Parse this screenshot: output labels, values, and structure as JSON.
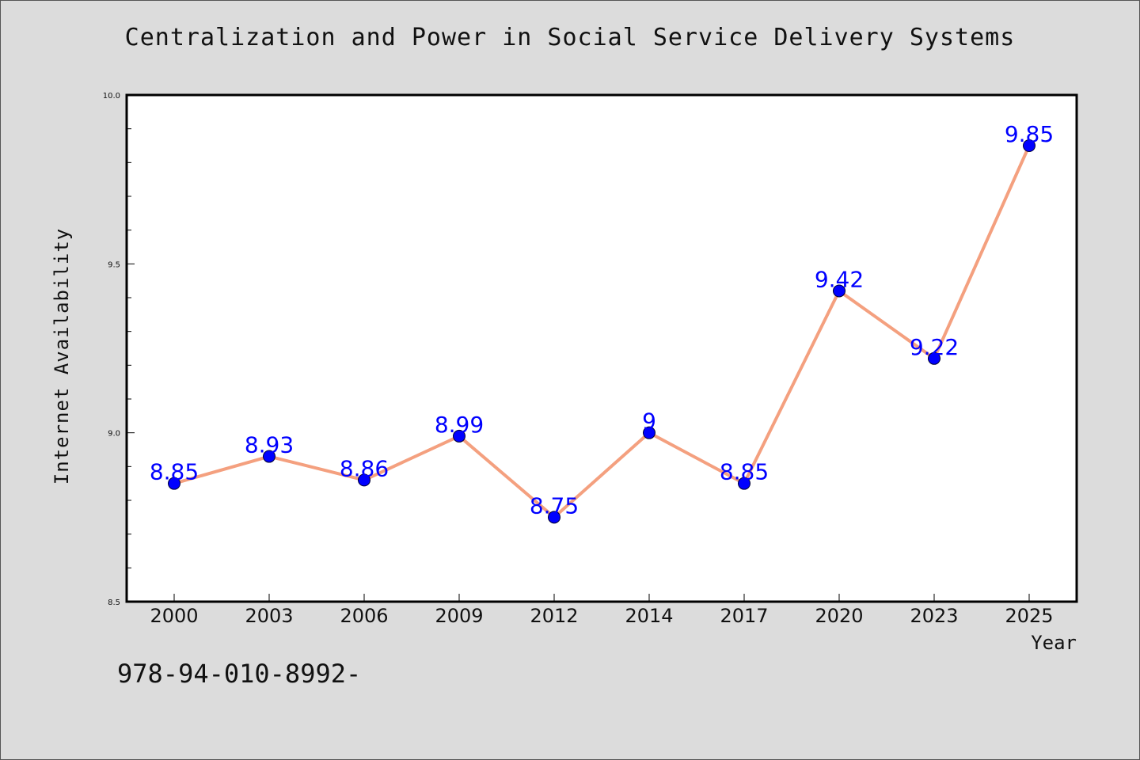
{
  "chart_data": {
    "type": "line",
    "title": "Centralization and Power in Social Service Delivery Systems",
    "xlabel": "Year",
    "ylabel": "Internet Availability",
    "categories": [
      "2000",
      "2003",
      "2006",
      "2009",
      "2012",
      "2014",
      "2017",
      "2020",
      "2023",
      "2025"
    ],
    "series": [
      {
        "values": [
          8.85,
          8.93,
          8.86,
          8.99,
          8.75,
          9,
          8.85,
          9.42,
          9.22,
          9.85
        ],
        "data_labels": [
          "8.85",
          "8.93",
          "8.86",
          "8.99",
          "8.75",
          "9",
          "8.85",
          "9.42",
          "9.22",
          "9.85"
        ],
        "line_color": "#f4a07f",
        "marker_color": "#0000ff",
        "label_color": "#0000ff"
      }
    ],
    "ylim": [
      8.5,
      10.0
    ],
    "yticks": [
      "8.5",
      "9.0",
      "9.5",
      "10.0"
    ],
    "grid": false,
    "legend": "none",
    "background_color": "#dcdcdc",
    "plot_background_color": "#ffffff"
  },
  "footer_text": "978-94-010-8992-"
}
